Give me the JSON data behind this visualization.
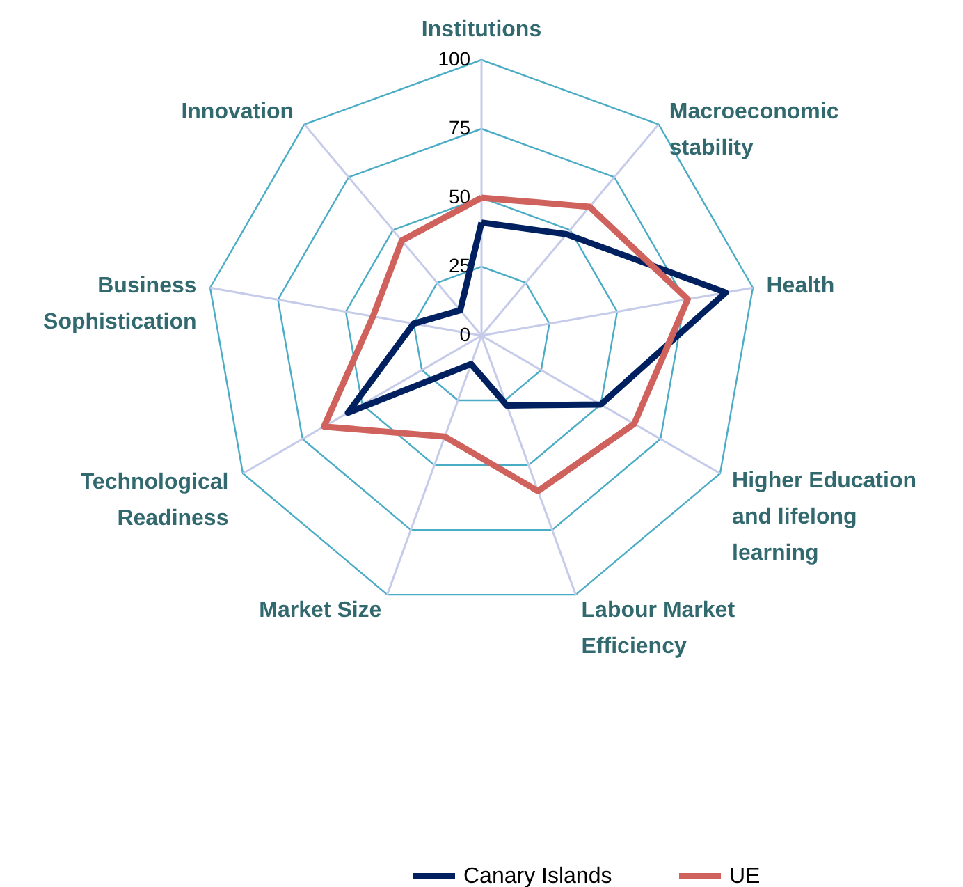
{
  "chart_data": {
    "type": "radar",
    "categories": [
      "Institutions",
      "Macroeconomic stability",
      "Health",
      "Higher Education and lifelong learning",
      "Labour Market Efficiency",
      "Market Size",
      "Technological Readiness",
      "Business Sophistication",
      "Innovation"
    ],
    "series": [
      {
        "name": "Canary Islands",
        "color": "#002060",
        "values": [
          41,
          48,
          90,
          50,
          27,
          11,
          56,
          25,
          12
        ]
      },
      {
        "name": "UE",
        "color": "#d0625d",
        "values": [
          50,
          61,
          76,
          64,
          60,
          39,
          66,
          40,
          45
        ]
      }
    ],
    "ylim": [
      0,
      100
    ],
    "yticks": [
      0,
      25,
      50,
      75,
      100
    ],
    "grid": true,
    "legend": "bottom",
    "marker": "none",
    "line_style": "solid"
  }
}
